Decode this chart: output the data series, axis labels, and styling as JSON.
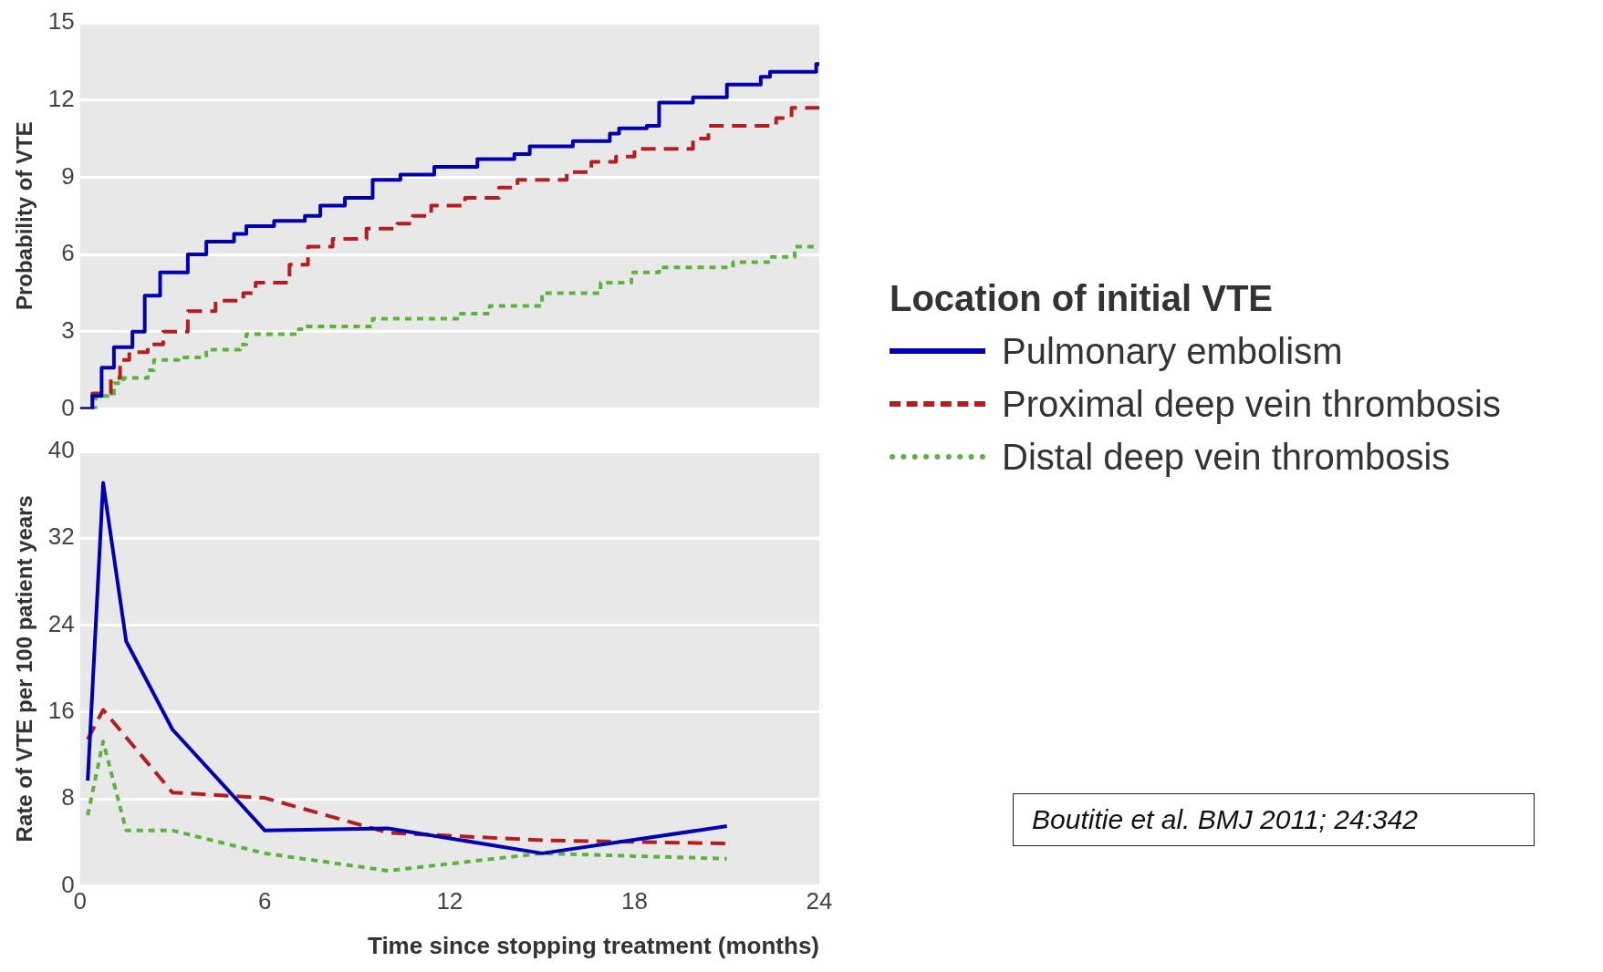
{
  "chart_data": [
    {
      "type": "step",
      "ylabel": "Probability of VTE",
      "xlim": [
        0,
        24
      ],
      "xticks": [
        0,
        6,
        12,
        18,
        24
      ],
      "ylim": [
        0,
        15
      ],
      "yticks": [
        0,
        3,
        6,
        9,
        12,
        15
      ],
      "tick_labels": "y",
      "grid": "y",
      "legend": "right",
      "legend_title": "Location of initial VTE",
      "marker": "none",
      "series": [
        {
          "name": "Pulmonary embolism",
          "color": "#0000b4",
          "line_style": "solid",
          "x": [
            0,
            0.4,
            0.7,
            1.1,
            1.7,
            2.1,
            2.6,
            3.5,
            4.1,
            5.0,
            5.4,
            6.3,
            7.3,
            7.8,
            8.6,
            9.5,
            10.4,
            11.5,
            12.9,
            14.1,
            14.6,
            16.0,
            17.2,
            17.5,
            18.4,
            18.8,
            19.9,
            21.0,
            22.1,
            22.4,
            23.9,
            24
          ],
          "values": [
            0,
            0.5,
            1.6,
            2.4,
            3.0,
            4.4,
            5.3,
            6.0,
            6.5,
            6.8,
            7.1,
            7.3,
            7.5,
            7.9,
            8.2,
            8.9,
            9.1,
            9.4,
            9.7,
            9.9,
            10.2,
            10.4,
            10.7,
            10.9,
            11.0,
            11.9,
            12.1,
            12.6,
            12.9,
            13.1,
            13.4,
            13.4
          ]
        },
        {
          "name": "Proximal deep vein thrombosis",
          "color": "#b41e1e",
          "line_style": "dashed",
          "x": [
            0,
            0.4,
            1.0,
            1.3,
            1.6,
            2.2,
            2.7,
            3.5,
            4.4,
            5.3,
            5.7,
            6.8,
            7.4,
            8.2,
            9.3,
            10.3,
            10.8,
            11.4,
            12.5,
            13.6,
            14.2,
            15.8,
            16.6,
            17.4,
            18.0,
            19.9,
            20.4,
            22.6,
            23.1,
            24
          ],
          "values": [
            0,
            0.6,
            1.2,
            1.9,
            2.2,
            2.5,
            3.0,
            3.8,
            4.2,
            4.5,
            4.9,
            5.6,
            6.3,
            6.6,
            7.0,
            7.2,
            7.5,
            7.9,
            8.2,
            8.6,
            8.9,
            9.2,
            9.6,
            9.8,
            10.1,
            10.5,
            11.0,
            11.3,
            11.7,
            11.9
          ]
        },
        {
          "name": "Distal deep vein thrombosis",
          "color": "#5ab43c",
          "line_style": "dotted",
          "x": [
            0,
            0.5,
            1.1,
            1.4,
            2.2,
            2.4,
            3.2,
            4.1,
            5.2,
            5.4,
            7.1,
            7.3,
            9.5,
            12.3,
            13.3,
            15.0,
            16.9,
            17.9,
            18.8,
            21.2,
            22.4,
            23.2,
            24
          ],
          "values": [
            0,
            0.5,
            1.0,
            1.2,
            1.5,
            1.9,
            2.0,
            2.3,
            2.5,
            2.9,
            3.1,
            3.2,
            3.5,
            3.7,
            4.0,
            4.5,
            4.9,
            5.3,
            5.5,
            5.7,
            5.9,
            6.3,
            6.3
          ]
        }
      ]
    },
    {
      "type": "line",
      "ylabel": "Rate of VTE per 100 patient years",
      "xlabel": "Time since stopping treatment (months)",
      "xlim": [
        0,
        24
      ],
      "xticks": [
        0,
        6,
        12,
        18,
        24
      ],
      "ylim": [
        0,
        40
      ],
      "yticks": [
        0,
        8,
        16,
        24,
        32,
        40
      ],
      "grid": "y",
      "marker": "none",
      "annotations": [
        "Boutitie et al. BMJ 2011; 24:342"
      ],
      "series": [
        {
          "color": "#0000b4",
          "line_style": "solid",
          "x": [
            0.25,
            0.75,
            1.5,
            3,
            6,
            10,
            15,
            21
          ],
          "values": [
            9.7,
            37.1,
            22.5,
            14.4,
            5.1,
            5.3,
            3.0,
            5.5
          ]
        },
        {
          "color": "#b41e1e",
          "line_style": "dashed",
          "x": [
            0.25,
            0.75,
            3,
            6,
            10,
            15,
            21
          ],
          "values": [
            13.5,
            16.2,
            8.6,
            8.1,
            4.9,
            4.2,
            3.9
          ]
        },
        {
          "color": "#5ab43c",
          "line_style": "dotted",
          "x": [
            0.25,
            0.75,
            1.5,
            3,
            6,
            10,
            15,
            21
          ],
          "values": [
            6.5,
            13.3,
            5.1,
            5.1,
            3.0,
            1.4,
            3.0,
            2.5
          ]
        }
      ]
    }
  ]
}
